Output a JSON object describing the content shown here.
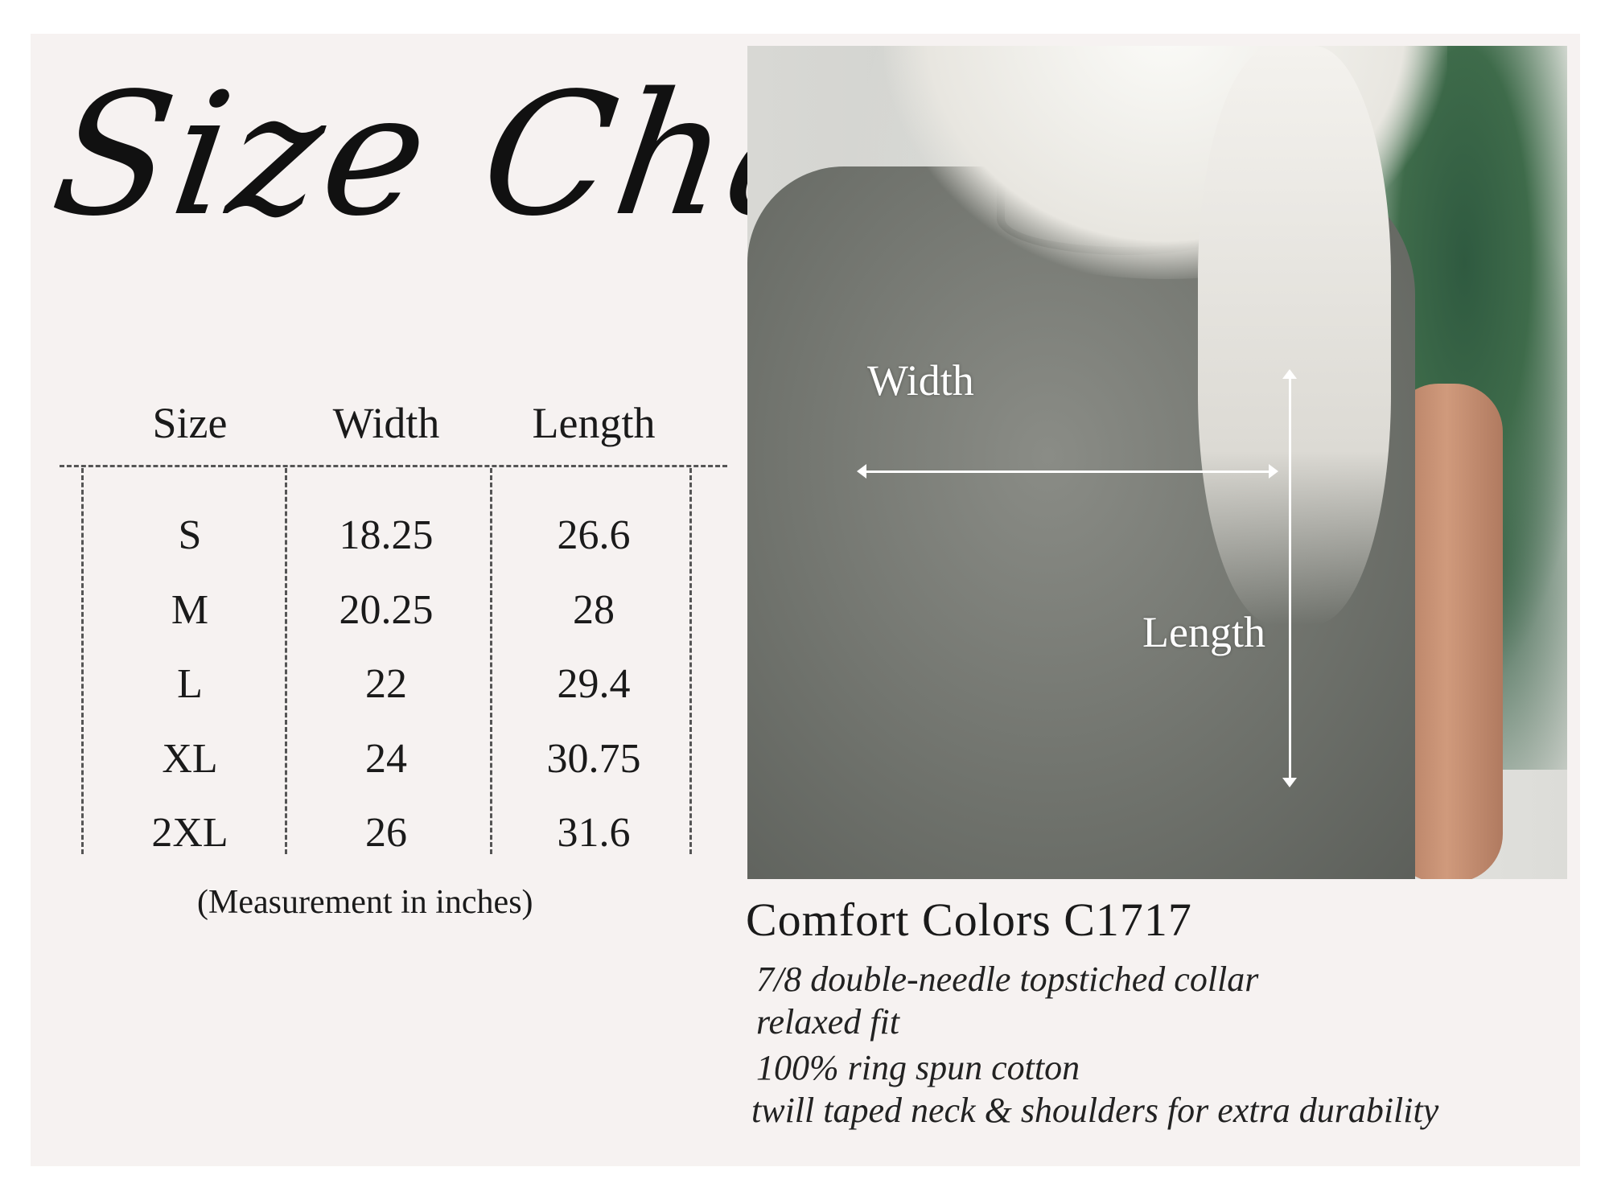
{
  "title": "Size Chart",
  "table": {
    "headers": [
      "Size",
      "Width",
      "Length"
    ],
    "rows": [
      [
        "S",
        "18.25",
        "26.6"
      ],
      [
        "M",
        "20.25",
        "28"
      ],
      [
        "L",
        "22",
        "29.4"
      ],
      [
        "XL",
        "24",
        "30.75"
      ],
      [
        "2XL",
        "26",
        "31.6"
      ]
    ],
    "note": "(Measurement in inches)"
  },
  "photo": {
    "width_label": "Width",
    "length_label": "Length"
  },
  "product": {
    "name": "Comfort Colors C1717",
    "features": [
      "7/8 double-needle topstiched collar",
      "relaxed fit",
      "100% ring spun cotton",
      "twill taped neck & shoulders for extra durability"
    ]
  }
}
